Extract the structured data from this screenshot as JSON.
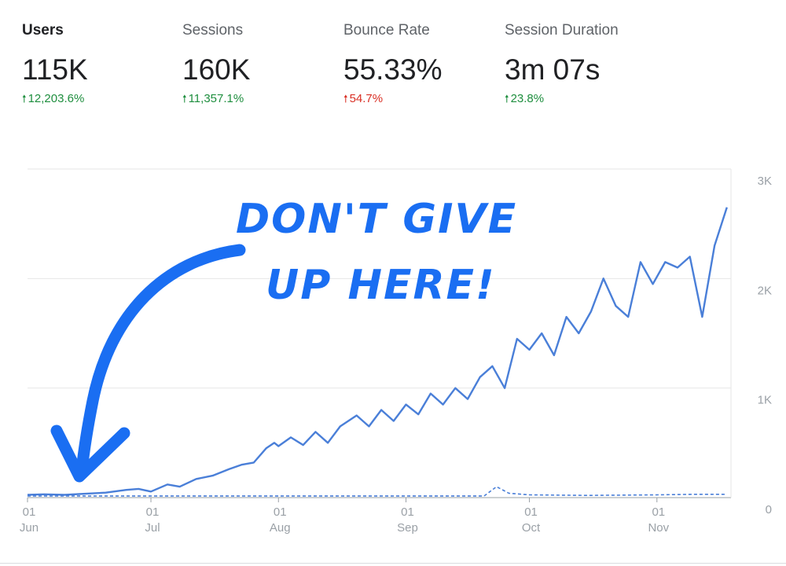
{
  "metrics": [
    {
      "label": "Users",
      "value": "115K",
      "change": "12,203.6%",
      "direction": "up",
      "change_color": "#1e8e3e",
      "selected": true
    },
    {
      "label": "Sessions",
      "value": "160K",
      "change": "11,357.1%",
      "direction": "up",
      "change_color": "#1e8e3e",
      "selected": false
    },
    {
      "label": "Bounce Rate",
      "value": "55.33%",
      "change": "54.7%",
      "direction": "up",
      "change_color": "#d93025",
      "selected": false
    },
    {
      "label": "Session Duration",
      "value": "3m 07s",
      "change": "23.8%",
      "direction": "up",
      "change_color": "#1e8e3e",
      "selected": false
    }
  ],
  "annotation": {
    "text_line1": "DON'T GIVE",
    "text_line2": "UP HERE!",
    "color": "#1a6ef2"
  },
  "chart_data": {
    "type": "line",
    "title": "",
    "xlabel": "",
    "ylabel": "",
    "ylim": [
      0,
      3000
    ],
    "y_ticks": [
      "0",
      "1K",
      "2K",
      "3K"
    ],
    "x_ticks": [
      {
        "day": "01",
        "month": "Jun",
        "date": "Jun 01"
      },
      {
        "day": "01",
        "month": "Jul",
        "date": "Jul 01"
      },
      {
        "day": "01",
        "month": "Aug",
        "date": "Aug 01"
      },
      {
        "day": "01",
        "month": "Sep",
        "date": "Sep 01"
      },
      {
        "day": "01",
        "month": "Oct",
        "date": "Oct 01"
      },
      {
        "day": "01",
        "month": "Nov",
        "date": "Nov 01"
      }
    ],
    "grid": true,
    "series": [
      {
        "color": "#4a7fd8",
        "style": "solid",
        "points": [
          [
            "Jun 01",
            25
          ],
          [
            "Jun 05",
            30
          ],
          [
            "Jun 10",
            25
          ],
          [
            "Jun 15",
            35
          ],
          [
            "Jun 20",
            45
          ],
          [
            "Jun 25",
            70
          ],
          [
            "Jun 28",
            80
          ],
          [
            "Jul 01",
            55
          ],
          [
            "Jul 05",
            120
          ],
          [
            "Jul 08",
            100
          ],
          [
            "Jul 12",
            170
          ],
          [
            "Jul 16",
            200
          ],
          [
            "Jul 20",
            260
          ],
          [
            "Jul 23",
            300
          ],
          [
            "Jul 26",
            320
          ],
          [
            "Jul 29",
            450
          ],
          [
            "Jul 31",
            500
          ],
          [
            "Aug 01",
            470
          ],
          [
            "Aug 04",
            550
          ],
          [
            "Aug 07",
            480
          ],
          [
            "Aug 10",
            600
          ],
          [
            "Aug 13",
            500
          ],
          [
            "Aug 16",
            650
          ],
          [
            "Aug 20",
            750
          ],
          [
            "Aug 23",
            650
          ],
          [
            "Aug 26",
            800
          ],
          [
            "Aug 29",
            700
          ],
          [
            "Sep 01",
            850
          ],
          [
            "Sep 04",
            760
          ],
          [
            "Sep 07",
            950
          ],
          [
            "Sep 10",
            850
          ],
          [
            "Sep 13",
            1000
          ],
          [
            "Sep 16",
            900
          ],
          [
            "Sep 19",
            1100
          ],
          [
            "Sep 22",
            1200
          ],
          [
            "Sep 25",
            1000
          ],
          [
            "Sep 28",
            1450
          ],
          [
            "Oct 01",
            1350
          ],
          [
            "Oct 04",
            1500
          ],
          [
            "Oct 07",
            1300
          ],
          [
            "Oct 10",
            1650
          ],
          [
            "Oct 13",
            1500
          ],
          [
            "Oct 16",
            1700
          ],
          [
            "Oct 19",
            2000
          ],
          [
            "Oct 22",
            1750
          ],
          [
            "Oct 25",
            1650
          ],
          [
            "Oct 28",
            2150
          ],
          [
            "Oct 31",
            1950
          ],
          [
            "Nov 03",
            2150
          ],
          [
            "Nov 06",
            2100
          ],
          [
            "Nov 09",
            2200
          ],
          [
            "Nov 12",
            1650
          ],
          [
            "Nov 15",
            2300
          ],
          [
            "Nov 18",
            2650
          ]
        ]
      },
      {
        "color": "#4a7fd8",
        "style": "dashed",
        "points": [
          [
            "Jun 01",
            15
          ],
          [
            "Jul 01",
            15
          ],
          [
            "Aug 01",
            15
          ],
          [
            "Sep 01",
            15
          ],
          [
            "Sep 20",
            15
          ],
          [
            "Sep 23",
            100
          ],
          [
            "Sep 26",
            40
          ],
          [
            "Oct 01",
            25
          ],
          [
            "Oct 15",
            20
          ],
          [
            "Nov 01",
            25
          ],
          [
            "Nov 10",
            30
          ],
          [
            "Nov 18",
            30
          ]
        ]
      }
    ]
  }
}
